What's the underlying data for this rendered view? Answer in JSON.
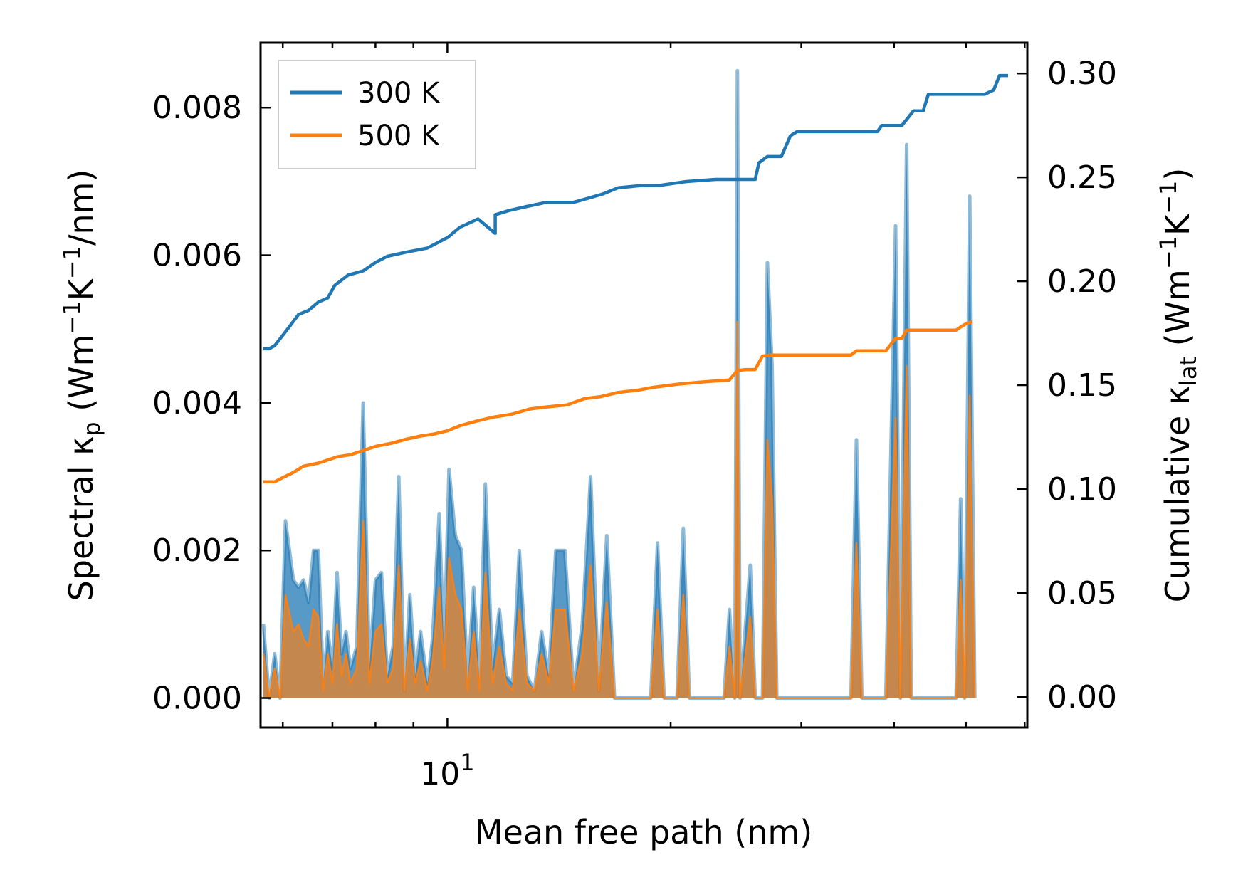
{
  "chart_data": {
    "type": "line",
    "title": "",
    "xlabel": "Mean free path (nm)",
    "xscale": "log",
    "xlim": [
      5.6,
      60.5
    ],
    "x_major_ticks": [
      {
        "value": 10,
        "base": "10",
        "exp": "1"
      }
    ],
    "x_minor_ticks": [
      6,
      7,
      8,
      9,
      20,
      30,
      40,
      50,
      60
    ],
    "ylabel_left": {
      "pre": "Spectral κ",
      "sub": "p",
      "mid": " (Wm",
      "sup1": "−1",
      "mid2": "K",
      "sup2": "−1",
      "post": "/nm)"
    },
    "ylabel_right": {
      "pre": "Cumulative κ",
      "sub": "lat",
      "mid": " (Wm",
      "sup1": "−1",
      "mid2": "K",
      "sup2": "−1",
      "post": ")"
    },
    "ylim_left": [
      -0.0004,
      0.00888
    ],
    "ylim_right": [
      -0.0148,
      0.3148
    ],
    "yticks_left": [
      "0.000",
      "0.002",
      "0.004",
      "0.006",
      "0.008"
    ],
    "yticks_right": [
      "0.00",
      "0.05",
      "0.10",
      "0.15",
      "0.20",
      "0.25",
      "0.30"
    ],
    "legend": {
      "position": "top-left",
      "entries": [
        {
          "label": "300 K",
          "color": "#1f77b4"
        },
        {
          "label": "500 K",
          "color": "#ff7f0e"
        }
      ]
    },
    "series": [
      {
        "name": "300 K",
        "color": "#1f77b4",
        "cumulative": [
          [
            5.65,
            0.1675
          ],
          [
            5.75,
            0.1675
          ],
          [
            5.85,
            0.169
          ],
          [
            6.0,
            0.174
          ],
          [
            6.15,
            0.179
          ],
          [
            6.3,
            0.184
          ],
          [
            6.5,
            0.186
          ],
          [
            6.7,
            0.19
          ],
          [
            6.9,
            0.192
          ],
          [
            7.05,
            0.198
          ],
          [
            7.35,
            0.203
          ],
          [
            7.7,
            0.205
          ],
          [
            8.0,
            0.209
          ],
          [
            8.3,
            0.212
          ],
          [
            8.8,
            0.214
          ],
          [
            9.4,
            0.216
          ],
          [
            10.0,
            0.221
          ],
          [
            10.4,
            0.226
          ],
          [
            11.0,
            0.23
          ],
          [
            11.6,
            0.223
          ],
          [
            11.6,
            0.232
          ],
          [
            12.1,
            0.234
          ],
          [
            12.8,
            0.236
          ],
          [
            13.6,
            0.238
          ],
          [
            14.8,
            0.238
          ],
          [
            15.5,
            0.24
          ],
          [
            16.2,
            0.242
          ],
          [
            17.0,
            0.245
          ],
          [
            18.2,
            0.246
          ],
          [
            19.2,
            0.246
          ],
          [
            21.0,
            0.248
          ],
          [
            23.0,
            0.249
          ],
          [
            26.0,
            0.249
          ],
          [
            26.3,
            0.257
          ],
          [
            27.0,
            0.26
          ],
          [
            28.2,
            0.26
          ],
          [
            29.0,
            0.27
          ],
          [
            29.6,
            0.272
          ],
          [
            38.0,
            0.272
          ],
          [
            38.5,
            0.275
          ],
          [
            41.0,
            0.275
          ],
          [
            42.5,
            0.282
          ],
          [
            43.8,
            0.282
          ],
          [
            44.5,
            0.29
          ],
          [
            53.0,
            0.29
          ],
          [
            54.5,
            0.292
          ],
          [
            55.5,
            0.299
          ],
          [
            57.0,
            0.299
          ]
        ],
        "spectral": [
          [
            5.65,
            0.001
          ],
          [
            5.75,
            0.0
          ],
          [
            5.85,
            0.0006
          ],
          [
            5.95,
            0.0
          ],
          [
            6.05,
            0.0024
          ],
          [
            6.2,
            0.0016
          ],
          [
            6.3,
            0.0015
          ],
          [
            6.4,
            0.0016
          ],
          [
            6.5,
            0.0013
          ],
          [
            6.6,
            0.002
          ],
          [
            6.7,
            0.002
          ],
          [
            6.8,
            0.0002
          ],
          [
            6.9,
            0.0009
          ],
          [
            7.0,
            0.0004
          ],
          [
            7.1,
            0.0017
          ],
          [
            7.2,
            0.0006
          ],
          [
            7.3,
            0.0009
          ],
          [
            7.4,
            0.0004
          ],
          [
            7.55,
            0.0007
          ],
          [
            7.7,
            0.004
          ],
          [
            7.85,
            0.0004
          ],
          [
            8.0,
            0.0016
          ],
          [
            8.15,
            0.0017
          ],
          [
            8.3,
            0.0003
          ],
          [
            8.45,
            0.0007
          ],
          [
            8.6,
            0.003
          ],
          [
            8.75,
            0.0001
          ],
          [
            8.9,
            0.0014
          ],
          [
            9.05,
            0.0003
          ],
          [
            9.2,
            0.0009
          ],
          [
            9.4,
            0.0002
          ],
          [
            9.55,
            0.0008
          ],
          [
            9.75,
            0.0025
          ],
          [
            9.9,
            0.0006
          ],
          [
            10.05,
            0.0031
          ],
          [
            10.25,
            0.0022
          ],
          [
            10.45,
            0.002
          ],
          [
            10.65,
            0.0002
          ],
          [
            10.85,
            0.0015
          ],
          [
            11.05,
            0.0002
          ],
          [
            11.25,
            0.0029
          ],
          [
            11.5,
            0.0004
          ],
          [
            11.75,
            0.0012
          ],
          [
            12.0,
            0.0003
          ],
          [
            12.25,
            0.0002
          ],
          [
            12.5,
            0.002
          ],
          [
            12.8,
            0.0003
          ],
          [
            13.1,
            0.0001
          ],
          [
            13.4,
            0.0009
          ],
          [
            13.7,
            0.0003
          ],
          [
            14.0,
            0.002
          ],
          [
            14.4,
            0.002
          ],
          [
            14.8,
            0.0001
          ],
          [
            15.2,
            0.001
          ],
          [
            15.6,
            0.003
          ],
          [
            16.0,
            0.0001
          ],
          [
            16.4,
            0.0022
          ],
          [
            16.8,
            0.0,
            true
          ],
          [
            17.2,
            0.0
          ],
          [
            18.8,
            0.0
          ],
          [
            19.2,
            0.0021
          ],
          [
            19.6,
            0.0
          ],
          [
            20.4,
            0.0
          ],
          [
            20.8,
            0.0023
          ],
          [
            21.2,
            0.0
          ],
          [
            23.6,
            0.0
          ],
          [
            24.0,
            0.0012
          ],
          [
            24.4,
            0.0
          ],
          [
            24.6,
            0.0085
          ],
          [
            24.8,
            0.0
          ],
          [
            25.6,
            0.0018
          ],
          [
            26.0,
            0.0
          ],
          [
            26.6,
            0.0
          ],
          [
            27.0,
            0.0059
          ],
          [
            27.4,
            0.0045
          ],
          [
            27.8,
            0.0
          ],
          [
            35.0,
            0.0
          ],
          [
            35.6,
            0.0035
          ],
          [
            36.2,
            0.0
          ],
          [
            39.0,
            0.0
          ],
          [
            40.2,
            0.0064
          ],
          [
            40.8,
            0.0
          ],
          [
            41.6,
            0.0075
          ],
          [
            42.2,
            0.0
          ],
          [
            48.5,
            0.0
          ],
          [
            49.2,
            0.0027
          ],
          [
            49.8,
            0.0
          ],
          [
            50.6,
            0.0068
          ],
          [
            51.4,
            0.0
          ]
        ]
      },
      {
        "name": "500 K",
        "color": "#ff7f0e",
        "cumulative": [
          [
            5.65,
            0.1035
          ],
          [
            5.85,
            0.1035
          ],
          [
            6.0,
            0.1055
          ],
          [
            6.2,
            0.108
          ],
          [
            6.4,
            0.111
          ],
          [
            6.7,
            0.1125
          ],
          [
            6.9,
            0.114
          ],
          [
            7.1,
            0.1155
          ],
          [
            7.4,
            0.1165
          ],
          [
            7.7,
            0.1185
          ],
          [
            8.0,
            0.1205
          ],
          [
            8.4,
            0.122
          ],
          [
            8.8,
            0.124
          ],
          [
            9.2,
            0.1255
          ],
          [
            9.6,
            0.1265
          ],
          [
            10.0,
            0.128
          ],
          [
            10.4,
            0.1305
          ],
          [
            10.9,
            0.1325
          ],
          [
            11.5,
            0.1345
          ],
          [
            12.2,
            0.136
          ],
          [
            12.9,
            0.1385
          ],
          [
            13.6,
            0.1395
          ],
          [
            14.5,
            0.1405
          ],
          [
            15.3,
            0.1435
          ],
          [
            16.1,
            0.1445
          ],
          [
            17.0,
            0.1465
          ],
          [
            18.0,
            0.1475
          ],
          [
            19.0,
            0.149
          ],
          [
            20.5,
            0.1505
          ],
          [
            22.0,
            0.1515
          ],
          [
            24.0,
            0.1525
          ],
          [
            24.6,
            0.157
          ],
          [
            25.2,
            0.1575
          ],
          [
            26.0,
            0.1575
          ],
          [
            26.6,
            0.164
          ],
          [
            27.2,
            0.1645
          ],
          [
            35.0,
            0.1645
          ],
          [
            35.6,
            0.1665
          ],
          [
            39.0,
            0.1665
          ],
          [
            40.2,
            0.1725
          ],
          [
            41.0,
            0.1725
          ],
          [
            41.6,
            0.1765
          ],
          [
            48.5,
            0.1765
          ],
          [
            49.2,
            0.178
          ],
          [
            50.0,
            0.1795
          ],
          [
            51.0,
            0.1805
          ]
        ],
        "spectral": [
          [
            5.65,
            0.0006
          ],
          [
            5.75,
            0.0
          ],
          [
            5.85,
            0.0004
          ],
          [
            5.95,
            0.0
          ],
          [
            6.05,
            0.0014
          ],
          [
            6.2,
            0.0009
          ],
          [
            6.3,
            0.001
          ],
          [
            6.4,
            0.0008
          ],
          [
            6.5,
            0.0007
          ],
          [
            6.6,
            0.0012
          ],
          [
            6.7,
            0.0011
          ],
          [
            6.8,
            0.0001
          ],
          [
            6.9,
            0.0006
          ],
          [
            7.0,
            0.0002
          ],
          [
            7.1,
            0.001
          ],
          [
            7.2,
            0.0003
          ],
          [
            7.3,
            0.0006
          ],
          [
            7.4,
            0.0002
          ],
          [
            7.55,
            0.0004
          ],
          [
            7.7,
            0.0024
          ],
          [
            7.85,
            0.0002
          ],
          [
            8.0,
            0.0009
          ],
          [
            8.15,
            0.001
          ],
          [
            8.3,
            0.0002
          ],
          [
            8.45,
            0.0004
          ],
          [
            8.6,
            0.0018
          ],
          [
            8.75,
            0.0001
          ],
          [
            8.9,
            0.0008
          ],
          [
            9.05,
            0.0002
          ],
          [
            9.2,
            0.0005
          ],
          [
            9.4,
            0.0001
          ],
          [
            9.55,
            0.0005
          ],
          [
            9.75,
            0.0015
          ],
          [
            9.9,
            0.0004
          ],
          [
            10.05,
            0.0019
          ],
          [
            10.25,
            0.0014
          ],
          [
            10.45,
            0.0012
          ],
          [
            10.65,
            0.0001
          ],
          [
            10.85,
            0.0009
          ],
          [
            11.05,
            0.0001
          ],
          [
            11.25,
            0.0017
          ],
          [
            11.5,
            0.0002
          ],
          [
            11.75,
            0.0007
          ],
          [
            12.0,
            0.0002
          ],
          [
            12.25,
            0.0001
          ],
          [
            12.5,
            0.0012
          ],
          [
            12.8,
            0.0002
          ],
          [
            13.1,
            0.0001
          ],
          [
            13.4,
            0.0006
          ],
          [
            13.7,
            0.0002
          ],
          [
            14.0,
            0.0012
          ],
          [
            14.4,
            0.0012
          ],
          [
            14.8,
            0.0001
          ],
          [
            15.2,
            0.0006
          ],
          [
            15.6,
            0.0018
          ],
          [
            16.0,
            0.0001
          ],
          [
            16.4,
            0.0013
          ],
          [
            16.8,
            0.0
          ],
          [
            17.2,
            0.0
          ],
          [
            18.8,
            0.0
          ],
          [
            19.2,
            0.0012
          ],
          [
            19.6,
            0.0
          ],
          [
            20.4,
            0.0
          ],
          [
            20.8,
            0.0014
          ],
          [
            21.2,
            0.0
          ],
          [
            23.6,
            0.0
          ],
          [
            24.0,
            0.0007
          ],
          [
            24.4,
            0.0
          ],
          [
            24.6,
            0.0051
          ],
          [
            24.8,
            0.0
          ],
          [
            25.6,
            0.0011
          ],
          [
            26.0,
            0.0
          ],
          [
            26.6,
            0.0
          ],
          [
            27.0,
            0.0035
          ],
          [
            27.4,
            0.0027
          ],
          [
            27.8,
            0.0
          ],
          [
            35.0,
            0.0
          ],
          [
            35.6,
            0.0021
          ],
          [
            36.2,
            0.0
          ],
          [
            39.0,
            0.0
          ],
          [
            40.2,
            0.0038
          ],
          [
            40.8,
            0.0
          ],
          [
            41.6,
            0.0045
          ],
          [
            42.2,
            0.0
          ],
          [
            48.5,
            0.0
          ],
          [
            49.2,
            0.0016
          ],
          [
            49.8,
            0.0
          ],
          [
            50.6,
            0.0041
          ],
          [
            51.4,
            0.0
          ]
        ]
      }
    ]
  }
}
